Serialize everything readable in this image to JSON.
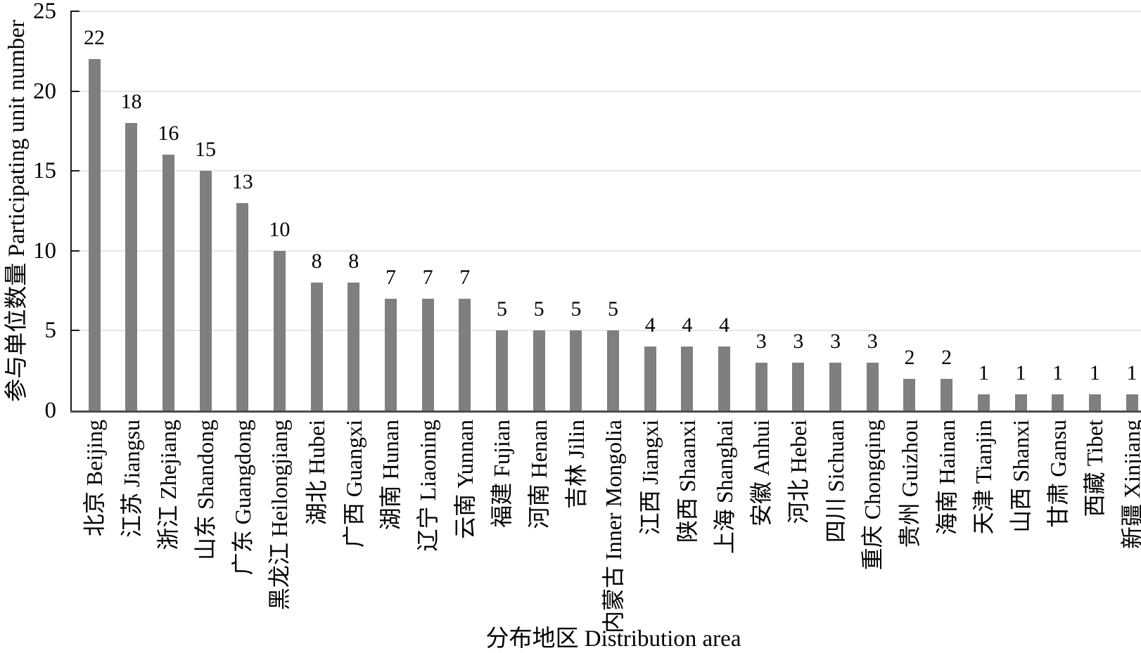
{
  "chart_data": {
    "type": "bar",
    "title": "",
    "xlabel": "分布地区  Distribution area",
    "ylabel": "参与单位数量 Participating unit number",
    "ylim": [
      0,
      25
    ],
    "yticks": [
      0,
      5,
      10,
      15,
      20,
      25
    ],
    "grid": true,
    "legend_position": "none",
    "bar_color": "#7f7f7f",
    "gridline_color": "#e7e7e7",
    "bar_value_labels_shown": true,
    "categories": [
      "北京 Beijing",
      "江苏 Jiangsu",
      "浙江 Zhejiang",
      "山东 Shandong",
      "广东 Guangdong",
      "黑龙江 Heilongjiang",
      "湖北 Hubei",
      "广西 Guangxi",
      "湖南 Hunan",
      "辽宁 Liaoning",
      "云南 Yunnan",
      "福建 Fujian",
      "河南 Henan",
      "吉林 Jilin",
      "内蒙古 Inner Mongolia",
      "江西 Jiangxi",
      "陕西 Shaanxi",
      "上海 Shanghai",
      "安徽 Anhui",
      "河北 Hebei",
      "四川 Sichuan",
      "重庆 Chongqing",
      "贵州 Guizhou",
      "海南 Hainan",
      "天津 Tianjin",
      "山西 Shanxi",
      "甘肃 Gansu",
      "西藏 Tibet",
      "新疆 Xinjiang"
    ],
    "values": [
      22,
      18,
      16,
      15,
      13,
      10,
      8,
      8,
      7,
      7,
      7,
      5,
      5,
      5,
      5,
      4,
      4,
      4,
      3,
      3,
      3,
      3,
      2,
      2,
      1,
      1,
      1,
      1,
      1
    ]
  }
}
